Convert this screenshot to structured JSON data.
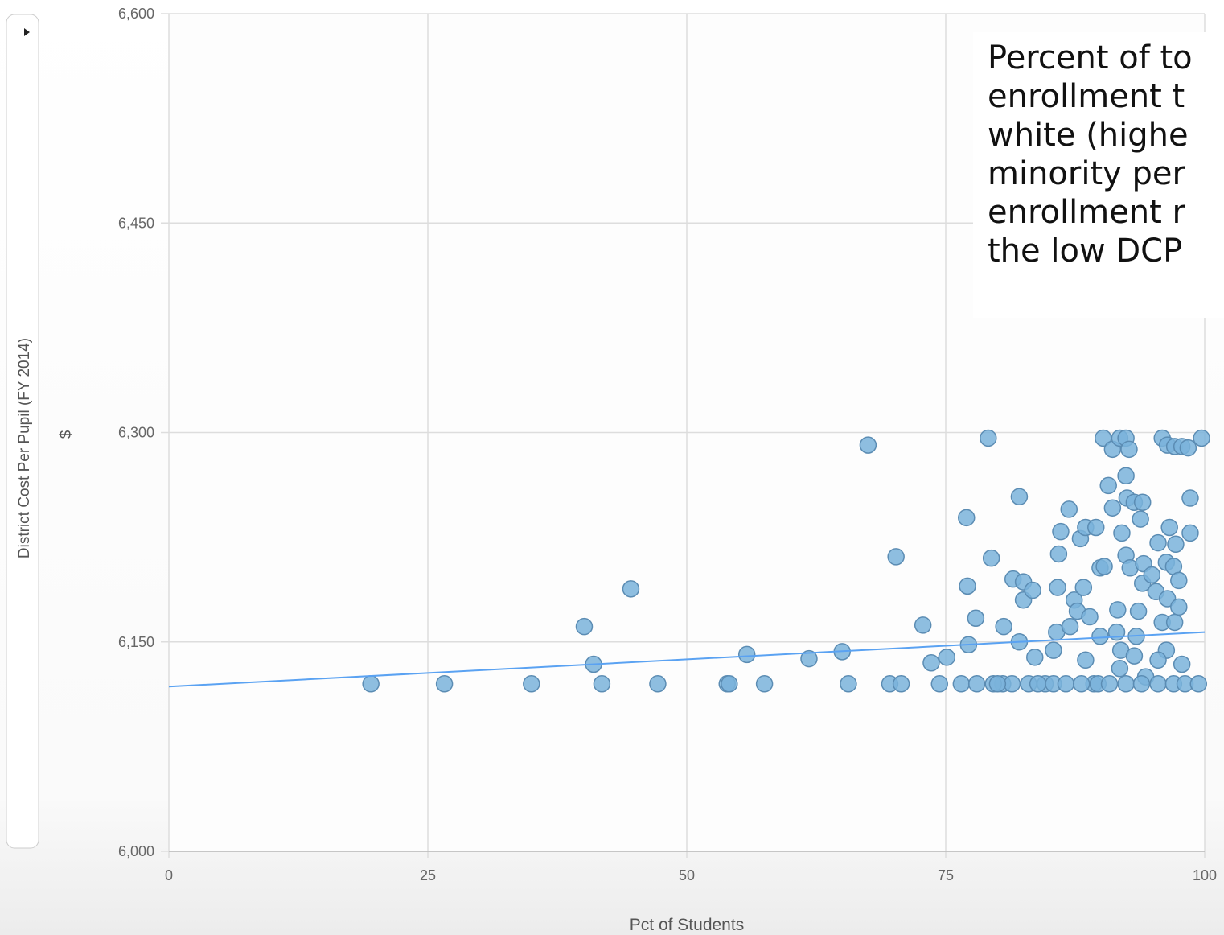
{
  "chart_data": {
    "type": "scatter",
    "ylabel": "District Cost Per Pupil (FY 2014)",
    "yunit": "$",
    "xlabel": "Pct of Students",
    "annotation": [
      "Percent of to",
      "enrollment t",
      "white (highe",
      "minority per",
      "enrollment r",
      "the low DCP"
    ],
    "xlim": [
      0,
      100
    ],
    "xticks": [
      0,
      25,
      50,
      75,
      100
    ],
    "ylim": [
      6000,
      6600
    ],
    "yticks": [
      {
        "value": 6000,
        "label": "6,000"
      },
      {
        "value": 6150,
        "label": "6,150"
      },
      {
        "value": 6300,
        "label": "6,300"
      },
      {
        "value": 6450,
        "label": "6,450"
      },
      {
        "value": 6600,
        "label": "6,600"
      }
    ],
    "grid": true,
    "color": "#7ab3db",
    "x": [
      19.5,
      26.6,
      35,
      40.1,
      41,
      41.8,
      44.6,
      47.2,
      53.9,
      54.1,
      55.8,
      57.5,
      61.8,
      65,
      65.6,
      67.5,
      70.2,
      69.6,
      70.7,
      72.8,
      73.6,
      75.1,
      74.4,
      76.5,
      77,
      77.1,
      77.2,
      77.9,
      78,
      79.1,
      79.4,
      80.6,
      80.5,
      81.4,
      81.5,
      82.1,
      82.5,
      82.5,
      82.1,
      83.4,
      83.6,
      83,
      84.6,
      85.4,
      85.9,
      86.1,
      85.8,
      85.7,
      86.9,
      87,
      87.4,
      87.7,
      88.3,
      88,
      88.5,
      88.9,
      88.5,
      89.3,
      89.5,
      89.9,
      90.3,
      89.9,
      90.2,
      90.7,
      91.1,
      91.1,
      91.8,
      92.4,
      92.4,
      92.7,
      92.5,
      92,
      92.4,
      92.8,
      91.6,
      91.5,
      91.9,
      91.8,
      93.2,
      94,
      93.8,
      94.1,
      94,
      93.6,
      93.4,
      93.2,
      94.3,
      94.9,
      95.3,
      95.5,
      95.9,
      96.4,
      97.1,
      97.8,
      98.4,
      99.7,
      98.6,
      96.6,
      97.2,
      98.6,
      96.3,
      97,
      97.5,
      96.4,
      95.9,
      97.5,
      97.1,
      96.3,
      97.8,
      95.5,
      79.6,
      80,
      83.9,
      85.4,
      86.6,
      88.1,
      89.7,
      90.8,
      92.4,
      93.9,
      95.5,
      97,
      98.1,
      99.4
    ],
    "values": [
      6120,
      6120,
      6120,
      6161,
      6134,
      6120,
      6188,
      6120,
      6120,
      6120,
      6141,
      6120,
      6138,
      6143,
      6120,
      6291,
      6211,
      6120,
      6120,
      6162,
      6135,
      6139,
      6120,
      6120,
      6239,
      6190,
      6148,
      6167,
      6120,
      6296,
      6210,
      6161,
      6120,
      6120,
      6195,
      6254,
      6193,
      6180,
      6150,
      6187,
      6139,
      6120,
      6120,
      6144,
      6213,
      6229,
      6189,
      6157,
      6245,
      6161,
      6180,
      6172,
      6189,
      6224,
      6232,
      6168,
      6137,
      6120,
      6232,
      6203,
      6204,
      6154,
      6296,
      6262,
      6288,
      6246,
      6296,
      6269,
      6296,
      6288,
      6253,
      6228,
      6212,
      6203,
      6173,
      6157,
      6144,
      6131,
      6250,
      6250,
      6238,
      6206,
      6192,
      6172,
      6154,
      6140,
      6125,
      6198,
      6186,
      6221,
      6296,
      6291,
      6290,
      6290,
      6289,
      6296,
      6253,
      6232,
      6220,
      6228,
      6207,
      6204,
      6194,
      6181,
      6164,
      6175,
      6164,
      6144,
      6134,
      6137,
      6120,
      6120,
      6120,
      6120,
      6120,
      6120,
      6120,
      6120,
      6120,
      6120,
      6120,
      6120,
      6120,
      6120
    ],
    "trendline": {
      "x": [
        0,
        100
      ],
      "values": [
        6118,
        6157
      ],
      "color": "#5aa2f2"
    }
  }
}
